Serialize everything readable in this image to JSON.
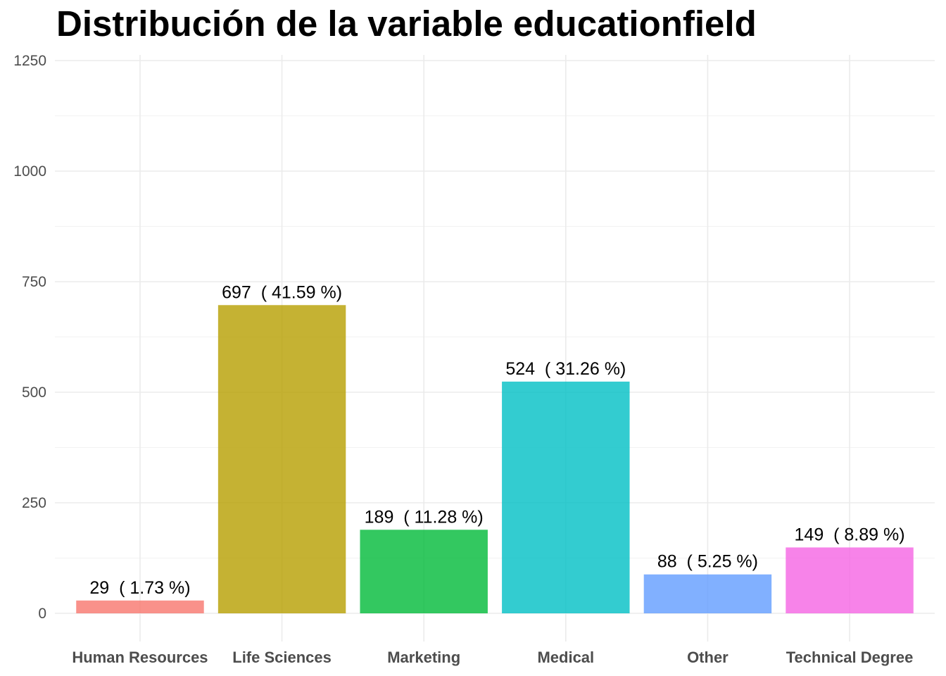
{
  "chart_data": {
    "type": "bar",
    "title": "Distribución de la variable educationfield",
    "xlabel": "",
    "ylabel": "",
    "categories": [
      "Human Resources",
      "Life Sciences",
      "Marketing",
      "Medical",
      "Other",
      "Technical Degree"
    ],
    "values": [
      29,
      697,
      189,
      524,
      88,
      149
    ],
    "bar_labels": [
      "29  ( 1.73 %)",
      "697  ( 41.59 %)",
      "189  ( 11.28 %)",
      "524  ( 31.26 %)",
      "88  ( 5.25 %)",
      "149  ( 8.89 %)"
    ],
    "colors": [
      "#F8766D",
      "#B79F00",
      "#00BA38",
      "#00BFC4",
      "#619CFF",
      "#F564E3"
    ],
    "bar_opacity": 0.8,
    "ylim": [
      0,
      1250
    ],
    "yticks": [
      0,
      250,
      500,
      750,
      1000,
      1250
    ],
    "grid": true,
    "legend": "none"
  }
}
